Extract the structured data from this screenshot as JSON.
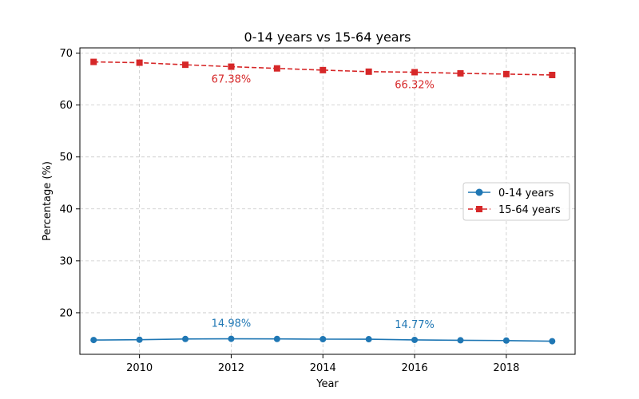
{
  "chart_data": {
    "type": "line",
    "title": "0-14 years vs 15-64 years",
    "xlabel": "Year",
    "ylabel": "Percentage (%)",
    "xlim": [
      2008.7,
      2019.5
    ],
    "ylim": [
      12,
      71
    ],
    "xticks": [
      2010,
      2012,
      2014,
      2016,
      2018
    ],
    "yticks": [
      20,
      30,
      40,
      50,
      60,
      70
    ],
    "grid": true,
    "legend_position": "center-right",
    "x": [
      2009,
      2010,
      2011,
      2012,
      2013,
      2014,
      2015,
      2016,
      2017,
      2018,
      2019
    ],
    "series": [
      {
        "name": "0-14 years",
        "color": "#1f77b4",
        "line_style": "solid",
        "marker": "circle",
        "values": [
          14.75,
          14.81,
          14.95,
          14.98,
          14.96,
          14.92,
          14.91,
          14.77,
          14.7,
          14.65,
          14.52
        ]
      },
      {
        "name": "15-64 years",
        "color": "#d62728",
        "line_style": "dashed",
        "marker": "square",
        "values": [
          68.3,
          68.15,
          67.75,
          67.38,
          67.05,
          66.72,
          66.42,
          66.32,
          66.1,
          65.95,
          65.78
        ]
      }
    ],
    "annotations": [
      {
        "text": "14.98%",
        "x": 2012,
        "y": 14.98,
        "series": 0
      },
      {
        "text": "14.77%",
        "x": 2016,
        "y": 14.77,
        "series": 0
      },
      {
        "text": "67.38%",
        "x": 2012,
        "y": 67.38,
        "series": 1
      },
      {
        "text": "66.32%",
        "x": 2016,
        "y": 66.32,
        "series": 1
      }
    ]
  }
}
